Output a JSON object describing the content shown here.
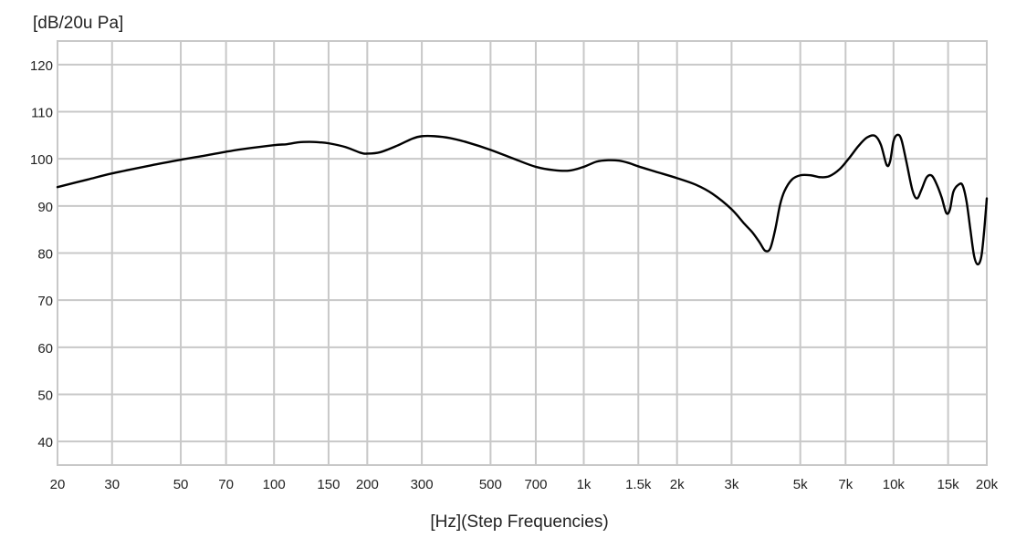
{
  "chart_data": {
    "type": "line",
    "title": "",
    "ylabel": "[dB/20u Pa]",
    "xlabel": "[Hz](Step Frequencies)",
    "x_scale": "log",
    "xlim": [
      20,
      20000
    ],
    "ylim": [
      35,
      125
    ],
    "grid": true,
    "line_color": "#000000",
    "grid_color": "#c8c8c8",
    "y_ticks": [
      {
        "value": 40,
        "label": "40"
      },
      {
        "value": 50,
        "label": "50"
      },
      {
        "value": 60,
        "label": "60"
      },
      {
        "value": 70,
        "label": "70"
      },
      {
        "value": 80,
        "label": "80"
      },
      {
        "value": 90,
        "label": "90"
      },
      {
        "value": 100,
        "label": "100"
      },
      {
        "value": 110,
        "label": "110"
      },
      {
        "value": 120,
        "label": "120"
      }
    ],
    "x_ticks": [
      {
        "value": 20,
        "label": "20"
      },
      {
        "value": 30,
        "label": "30"
      },
      {
        "value": 50,
        "label": "50"
      },
      {
        "value": 70,
        "label": "70"
      },
      {
        "value": 100,
        "label": "100"
      },
      {
        "value": 150,
        "label": "150"
      },
      {
        "value": 200,
        "label": "200"
      },
      {
        "value": 300,
        "label": "300"
      },
      {
        "value": 500,
        "label": "500"
      },
      {
        "value": 700,
        "label": "700"
      },
      {
        "value": 1000,
        "label": "1k"
      },
      {
        "value": 1500,
        "label": "1.5k"
      },
      {
        "value": 2000,
        "label": "2k"
      },
      {
        "value": 3000,
        "label": "3k"
      },
      {
        "value": 5000,
        "label": "5k"
      },
      {
        "value": 7000,
        "label": "7k"
      },
      {
        "value": 10000,
        "label": "10k"
      },
      {
        "value": 15000,
        "label": "15k"
      },
      {
        "value": 20000,
        "label": "20k"
      }
    ],
    "series": [
      {
        "points": [
          [
            20,
            94
          ],
          [
            25,
            95.6
          ],
          [
            30,
            96.9
          ],
          [
            40,
            98.6
          ],
          [
            50,
            99.8
          ],
          [
            60,
            100.7
          ],
          [
            70,
            101.5
          ],
          [
            80,
            102.1
          ],
          [
            100,
            102.9
          ],
          [
            110,
            103.1
          ],
          [
            120,
            103.5
          ],
          [
            130,
            103.6
          ],
          [
            140,
            103.5
          ],
          [
            150,
            103.3
          ],
          [
            170,
            102.5
          ],
          [
            190,
            101.3
          ],
          [
            200,
            101.1
          ],
          [
            220,
            101.4
          ],
          [
            250,
            102.8
          ],
          [
            280,
            104.3
          ],
          [
            300,
            104.8
          ],
          [
            330,
            104.8
          ],
          [
            370,
            104.4
          ],
          [
            420,
            103.5
          ],
          [
            500,
            101.9
          ],
          [
            600,
            99.9
          ],
          [
            700,
            98.3
          ],
          [
            800,
            97.6
          ],
          [
            900,
            97.5
          ],
          [
            1000,
            98.3
          ],
          [
            1100,
            99.4
          ],
          [
            1200,
            99.7
          ],
          [
            1300,
            99.6
          ],
          [
            1400,
            99.1
          ],
          [
            1500,
            98.4
          ],
          [
            1700,
            97.3
          ],
          [
            2000,
            95.9
          ],
          [
            2300,
            94.5
          ],
          [
            2600,
            92.6
          ],
          [
            3000,
            89.3
          ],
          [
            3300,
            86.2
          ],
          [
            3500,
            84.4
          ],
          [
            3700,
            82.2
          ],
          [
            3850,
            80.5
          ],
          [
            4000,
            81.0
          ],
          [
            4150,
            85.0
          ],
          [
            4300,
            90.2
          ],
          [
            4450,
            93.2
          ],
          [
            4700,
            95.6
          ],
          [
            5000,
            96.5
          ],
          [
            5400,
            96.5
          ],
          [
            5800,
            96.1
          ],
          [
            6200,
            96.3
          ],
          [
            6700,
            97.8
          ],
          [
            7200,
            100.2
          ],
          [
            7700,
            102.7
          ],
          [
            8200,
            104.5
          ],
          [
            8700,
            104.9
          ],
          [
            9100,
            103.0
          ],
          [
            9500,
            98.7
          ],
          [
            9750,
            99.5
          ],
          [
            10000,
            103.8
          ],
          [
            10300,
            105.1
          ],
          [
            10600,
            104.1
          ],
          [
            11000,
            99.4
          ],
          [
            11500,
            93.4
          ],
          [
            11900,
            91.6
          ],
          [
            12300,
            93.4
          ],
          [
            12800,
            96.1
          ],
          [
            13300,
            96.4
          ],
          [
            13800,
            94.5
          ],
          [
            14300,
            91.8
          ],
          [
            14800,
            88.5
          ],
          [
            15200,
            89.2
          ],
          [
            15600,
            93.0
          ],
          [
            16200,
            94.5
          ],
          [
            16700,
            94.4
          ],
          [
            17200,
            91.0
          ],
          [
            17700,
            85.0
          ],
          [
            18200,
            79.4
          ],
          [
            18700,
            77.6
          ],
          [
            19200,
            79.2
          ],
          [
            19600,
            84.5
          ],
          [
            20000,
            91.6
          ]
        ]
      }
    ]
  }
}
